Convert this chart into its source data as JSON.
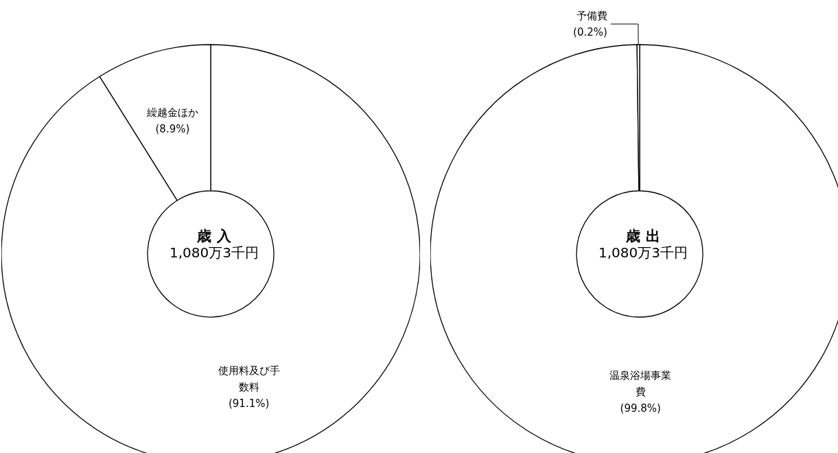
{
  "chart_data": [
    {
      "type": "donut",
      "title": "歳 入",
      "subtitle": "1,080万3千円",
      "categories": [
        "使用料及び手数料",
        "繰越金ほか"
      ],
      "values": [
        91.1,
        8.9
      ],
      "colors": [
        "#ffffff",
        "#ffffff"
      ],
      "value_labels": [
        "(91.1%)",
        "(8.9%)"
      ]
    },
    {
      "type": "donut",
      "title": "歳 出",
      "subtitle": "1,080万3千円",
      "categories": [
        "温泉浴場事業費",
        "予備費"
      ],
      "values": [
        99.8,
        0.2
      ],
      "colors": [
        "#ffffff",
        "#ffffff"
      ],
      "value_labels": [
        "(99.8%)",
        "(0.2%)"
      ]
    }
  ]
}
